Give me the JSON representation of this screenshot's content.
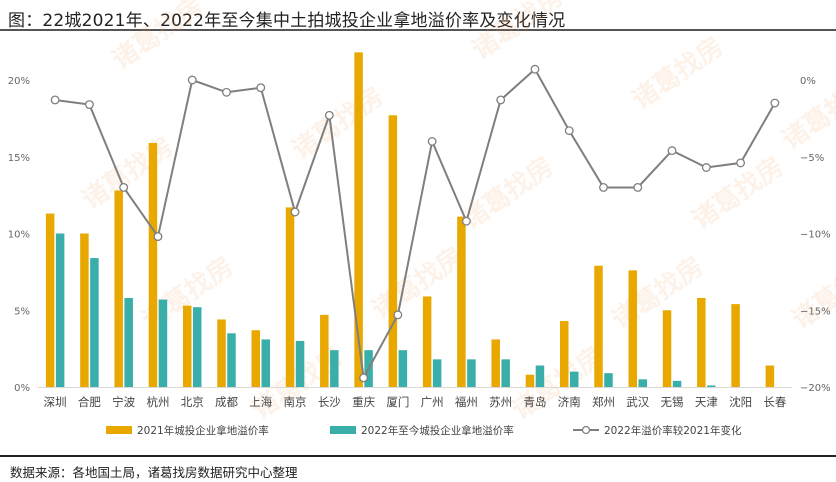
{
  "title": "图：22城2021年、2022年至今集中土拍城投企业拿地溢价率及变化情况",
  "footer": "数据来源：各地国土局，诸葛找房数据研究中心整理",
  "watermark": "诸葛找房",
  "colors": {
    "bar2021": "#E8A800",
    "bar2022": "#3AAFA9",
    "line": "#7F7F7F",
    "axis": "#D9D9D9"
  },
  "legend": [
    {
      "label": "2021年城投企业拿地溢价率",
      "type": "bar",
      "color": "#E8A800"
    },
    {
      "label": "2022年至今城投企业拿地溢价率",
      "type": "bar",
      "color": "#3AAFA9"
    },
    {
      "label": "2022年溢价率较2021年变化",
      "type": "line",
      "color": "#7F7F7F"
    }
  ],
  "chart_data": {
    "type": "bar+line",
    "title": "图：22城2021年、2022年至今集中土拍城投企业拿地溢价率及变化情况",
    "categories": [
      "深圳",
      "合肥",
      "宁波",
      "杭州",
      "北京",
      "成都",
      "上海",
      "南京",
      "长沙",
      "重庆",
      "厦门",
      "广州",
      "福州",
      "苏州",
      "青岛",
      "济南",
      "郑州",
      "武汉",
      "无锡",
      "天津",
      "沈阳",
      "长春"
    ],
    "series": [
      {
        "name": "2021年城投企业拿地溢价率",
        "type": "bar",
        "axis": "left",
        "unit": "%",
        "values": [
          11.3,
          10.0,
          12.8,
          15.9,
          5.3,
          4.4,
          3.7,
          11.7,
          4.7,
          21.8,
          17.7,
          5.9,
          11.1,
          3.1,
          0.8,
          4.3,
          7.9,
          7.6,
          5.0,
          5.8,
          5.4,
          1.4
        ]
      },
      {
        "name": "2022年至今城投企业拿地溢价率",
        "type": "bar",
        "axis": "left",
        "unit": "%",
        "values": [
          10.0,
          8.4,
          5.8,
          5.7,
          5.2,
          3.5,
          3.1,
          3.0,
          2.4,
          2.4,
          2.4,
          1.8,
          1.8,
          1.8,
          1.4,
          1.0,
          0.9,
          0.5,
          0.4,
          0.1,
          0.0,
          0.0
        ]
      },
      {
        "name": "2022年溢价率较2021年变化",
        "type": "line",
        "axis": "right",
        "unit": "%",
        "values": [
          -1.3,
          -1.6,
          -7.0,
          -10.2,
          0.0,
          -0.8,
          -0.5,
          -8.6,
          -2.3,
          -19.4,
          -15.3,
          -4.0,
          -9.2,
          -1.3,
          0.7,
          -3.3,
          -7.0,
          -7.0,
          -4.6,
          -5.7,
          -5.4,
          -1.5
        ]
      }
    ],
    "left_axis": {
      "ylim": [
        0,
        20
      ],
      "ticks": [
        "0%",
        "5%",
        "10%",
        "15%",
        "20%"
      ]
    },
    "right_axis": {
      "ylim": [
        -20,
        0
      ],
      "ticks": [
        "-20%",
        "-15%",
        "-10%",
        "-5%",
        "0%"
      ]
    },
    "xlabel": "",
    "ylabel": "",
    "grid": false,
    "legend_position": "bottom"
  }
}
